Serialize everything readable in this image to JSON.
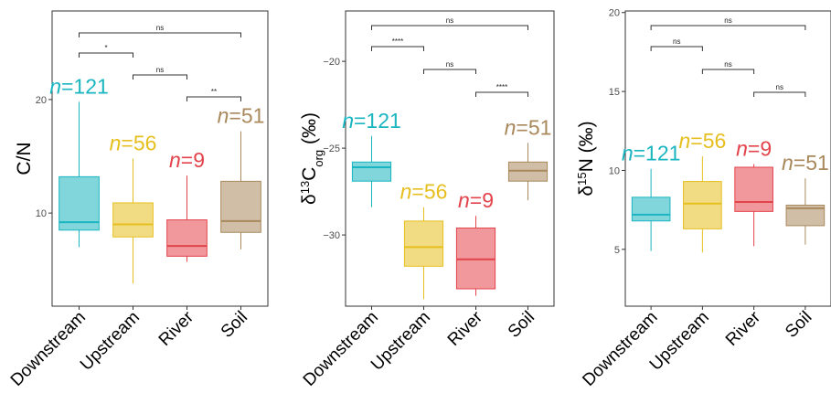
{
  "colors": {
    "Downstream": "#19b5c0",
    "Upstream": "#e6bf1f",
    "River": "#e3434b",
    "Soil": "#a9895c"
  },
  "chart_data": [
    {
      "type": "box",
      "ylabel": "C/N",
      "ylim": [
        1.8,
        27.8
      ],
      "yticks": [
        10,
        20
      ],
      "categories": [
        "Downstream",
        "Upstream",
        "River",
        "Soil"
      ],
      "n_labels": [
        "=121",
        "=56",
        "=9",
        "=51"
      ],
      "n_symbol": "n",
      "boxes": [
        {
          "min": 7.0,
          "q1": 8.5,
          "median": 9.2,
          "q3": 13.2,
          "max": 19.8
        },
        {
          "min": 3.8,
          "q1": 7.9,
          "median": 9.0,
          "q3": 10.9,
          "max": 14.8
        },
        {
          "min": 5.7,
          "q1": 6.2,
          "median": 7.1,
          "q3": 9.4,
          "max": 13.3
        },
        {
          "min": 6.8,
          "q1": 8.3,
          "median": 9.3,
          "q3": 12.8,
          "max": 17.2
        }
      ],
      "comparisons": [
        {
          "from": 0,
          "to": 3,
          "label": "ns"
        },
        {
          "from": 0,
          "to": 1,
          "label": "*"
        },
        {
          "from": 1,
          "to": 2,
          "label": "ns"
        },
        {
          "from": 2,
          "to": 3,
          "label": "**"
        }
      ]
    },
    {
      "type": "box",
      "ylabel": "δ13Corg (‰)",
      "ylabel_parts": {
        "delta": "δ",
        "sup": "13",
        "base": "C",
        "sub": "org",
        "unit": " (‰)"
      },
      "ylim": [
        -34.1,
        -17.1
      ],
      "yticks": [
        -30,
        -25,
        -20
      ],
      "categories": [
        "Downstream",
        "Upstream",
        "River",
        "Soil"
      ],
      "n_labels": [
        "=121",
        "=56",
        "=9",
        "=51"
      ],
      "n_symbol": "n",
      "boxes": [
        {
          "min": -28.4,
          "q1": -26.9,
          "median": -26.1,
          "q3": -25.8,
          "max": -24.3
        },
        {
          "min": -33.7,
          "q1": -31.8,
          "median": -30.7,
          "q3": -29.2,
          "max": -28.4
        },
        {
          "min": -33.5,
          "q1": -33.1,
          "median": -31.4,
          "q3": -29.6,
          "max": -28.9
        },
        {
          "min": -28.0,
          "q1": -26.9,
          "median": -26.3,
          "q3": -25.8,
          "max": -24.7
        }
      ],
      "comparisons": [
        {
          "from": 0,
          "to": 3,
          "label": "ns"
        },
        {
          "from": 0,
          "to": 1,
          "label": "****"
        },
        {
          "from": 1,
          "to": 2,
          "label": "ns"
        },
        {
          "from": 2,
          "to": 3,
          "label": "****"
        }
      ]
    },
    {
      "type": "box",
      "ylabel": "δ15N (‰)",
      "ylabel_parts": {
        "delta": "δ",
        "sup": "15",
        "base": "N",
        "sub": "",
        "unit": " (‰)"
      },
      "ylim": [
        1.4,
        20.1
      ],
      "yticks": [
        5,
        10,
        15,
        20
      ],
      "categories": [
        "Downstream",
        "Upstream",
        "River",
        "Soil"
      ],
      "n_labels": [
        "=121",
        "=56",
        "=9",
        "=51"
      ],
      "n_symbol": "n",
      "boxes": [
        {
          "min": 4.9,
          "q1": 6.8,
          "median": 7.2,
          "q3": 8.3,
          "max": 10.1
        },
        {
          "min": 4.8,
          "q1": 6.3,
          "median": 7.9,
          "q3": 9.3,
          "max": 10.9
        },
        {
          "min": 5.2,
          "q1": 7.4,
          "median": 8.0,
          "q3": 10.2,
          "max": 10.4
        },
        {
          "min": 5.3,
          "q1": 6.5,
          "median": 7.6,
          "q3": 7.8,
          "max": 9.5
        }
      ],
      "comparisons": [
        {
          "from": 0,
          "to": 3,
          "label": "ns"
        },
        {
          "from": 0,
          "to": 1,
          "label": "ns"
        },
        {
          "from": 1,
          "to": 2,
          "label": "ns"
        },
        {
          "from": 2,
          "to": 3,
          "label": "ns"
        }
      ]
    }
  ]
}
